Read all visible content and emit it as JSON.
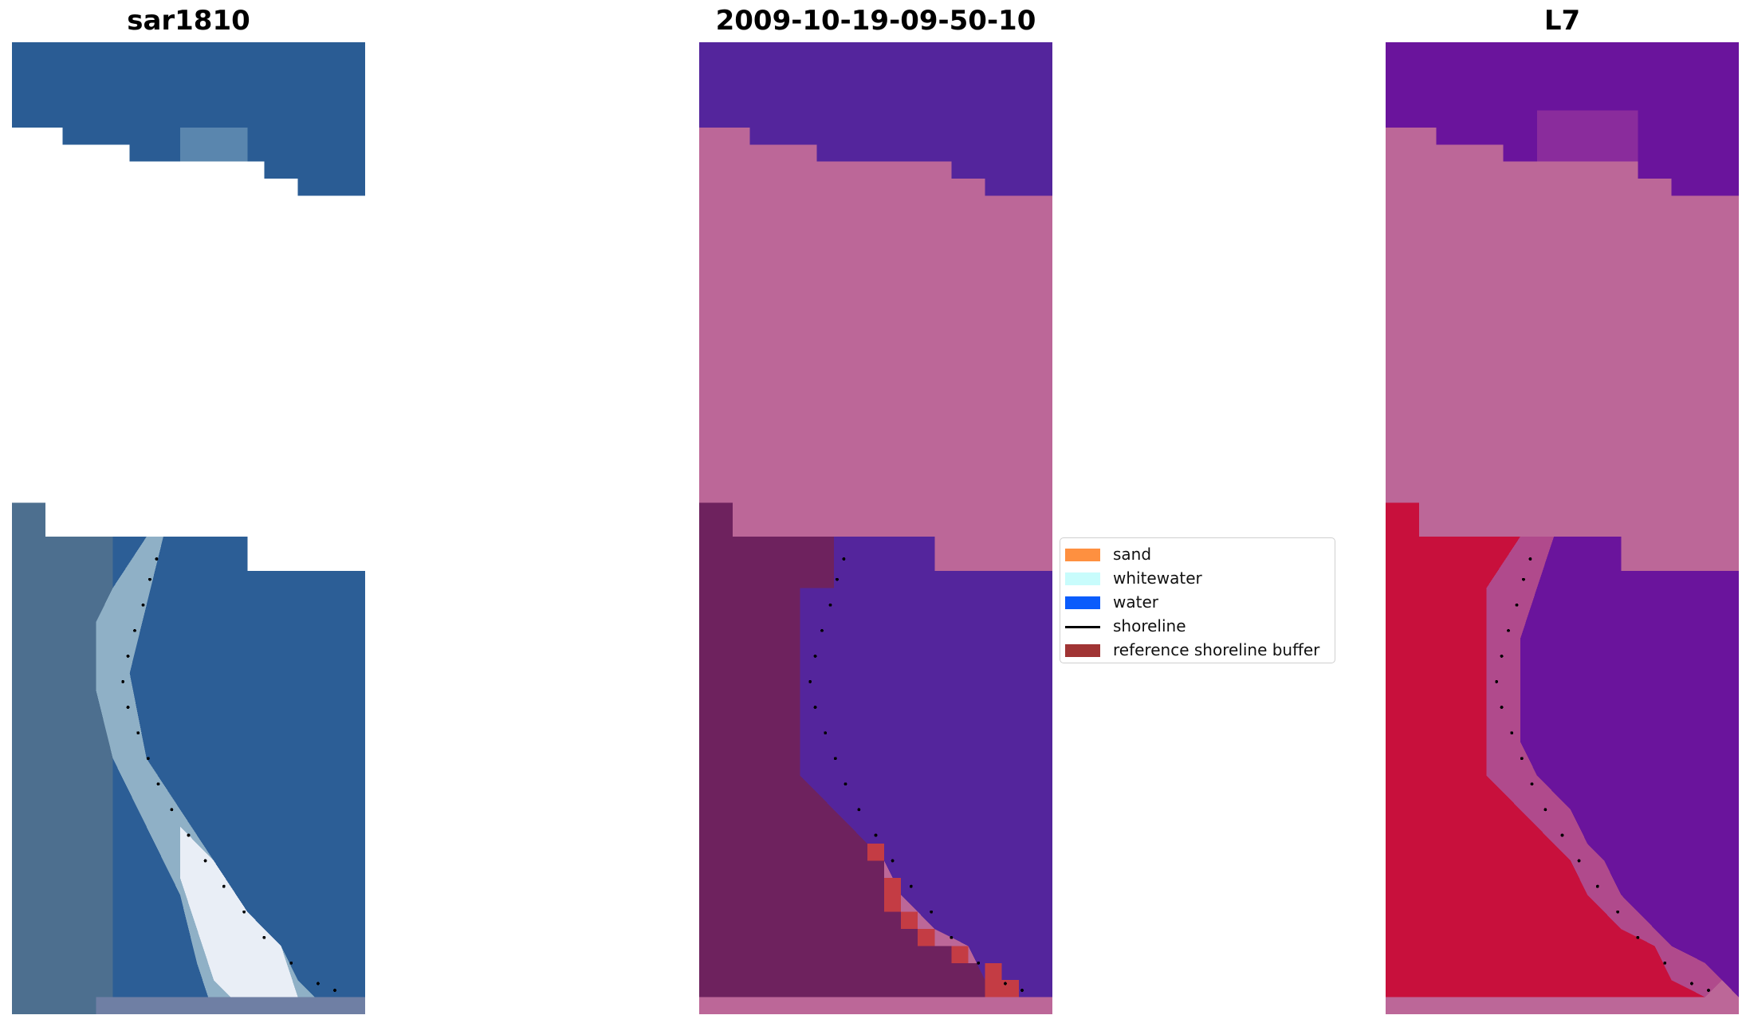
{
  "panels": [
    {
      "title": "sar1810"
    },
    {
      "title": "2009-10-19-09-50-10"
    },
    {
      "title": "L7"
    }
  ],
  "legend": {
    "items": [
      {
        "label": "sand",
        "kind": "patch",
        "color": "#fe9040"
      },
      {
        "label": "whitewater",
        "kind": "patch",
        "color": "#c8fcfc"
      },
      {
        "label": "water",
        "kind": "patch",
        "color": "#0a5cfc"
      },
      {
        "label": "shoreline",
        "kind": "line",
        "color": "#000000"
      },
      {
        "label": "reference shoreline buffer",
        "kind": "patch",
        "color": "#a03434"
      }
    ]
  },
  "colors": {
    "rgb_water": "#2a5c94",
    "rgb_land": "#4a6a8c",
    "rgb_beach": "#e8ecf4",
    "class_water": "#54259c",
    "class_nodata": "#bc6798",
    "class_land": "#6e225e",
    "class_buffer": "#c43c44",
    "ndwi_land": "#c8103c",
    "ndwi_water": "#6a149c",
    "ndwi_nodata": "#bc6798"
  }
}
